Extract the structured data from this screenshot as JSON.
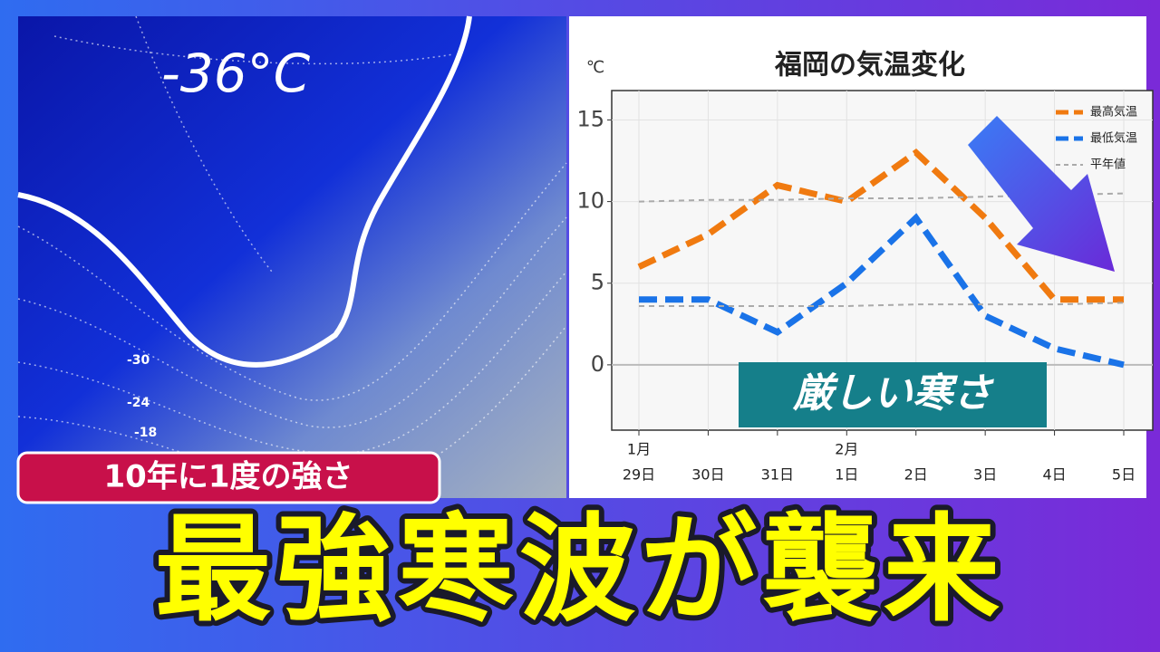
{
  "badge": "10年に1度の強さ",
  "headline": "最強寒波が襲来",
  "map": {
    "handwritten_label": "-36°C",
    "contour_labels": [
      "-30",
      "-24",
      "-18"
    ]
  },
  "chart_data": {
    "type": "line",
    "title": "福岡の気温変化",
    "y_label": "℃",
    "categories": [
      "29日",
      "30日",
      "31日",
      "1日",
      "2日",
      "3日",
      "4日",
      "5日"
    ],
    "month_labels": [
      "1月",
      null,
      null,
      "2月",
      null,
      null,
      null,
      null
    ],
    "series": [
      {
        "name": "最高気温",
        "color": "#f07a10",
        "values": [
          6,
          8,
          11,
          10,
          13,
          9,
          4,
          4
        ]
      },
      {
        "name": "最低気温",
        "color": "#1a73e8",
        "values": [
          4,
          4,
          2,
          5,
          9,
          3,
          1,
          0
        ]
      },
      {
        "name": "平年値",
        "color": "#aaaaaa",
        "values": [
          10,
          10.1,
          10.1,
          10.2,
          10.2,
          10.3,
          10.4,
          10.5
        ]
      },
      {
        "color": "#aaaaaa",
        "values": [
          3.6,
          3.6,
          3.6,
          3.6,
          3.7,
          3.7,
          3.7,
          3.8
        ]
      }
    ],
    "ylim": [
      -4,
      16.8
    ],
    "yticks": [
      0,
      5,
      10,
      15
    ],
    "grid": true,
    "legend": "upper right",
    "annotation": "厳しい寒さ"
  }
}
